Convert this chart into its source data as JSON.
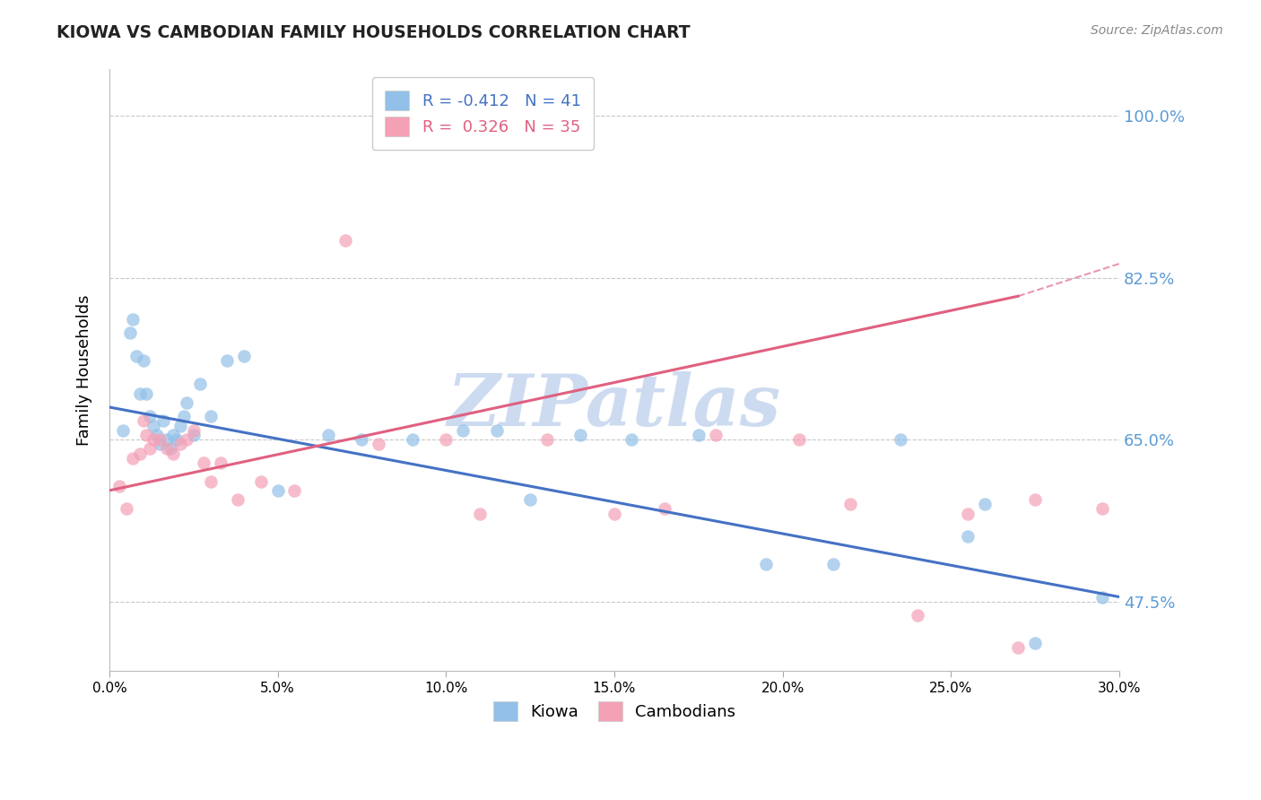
{
  "title": "KIOWA VS CAMBODIAN FAMILY HOUSEHOLDS CORRELATION CHART",
  "source": "Source: ZipAtlas.com",
  "ylabel": "Family Households",
  "xlim": [
    0.0,
    30.0
  ],
  "ylim": [
    40.0,
    105.0
  ],
  "yticks": [
    47.5,
    65.0,
    82.5,
    100.0
  ],
  "xticks": [
    0.0,
    5.0,
    10.0,
    15.0,
    20.0,
    25.0,
    30.0
  ],
  "kiowa_R": -0.412,
  "kiowa_N": 41,
  "cambodian_R": 0.326,
  "cambodian_N": 35,
  "kiowa_color": "#92C0E8",
  "cambodian_color": "#F4A0B5",
  "kiowa_line_color": "#4472C4",
  "cambodian_line_color": "#E06080",
  "background_color": "#ffffff",
  "grid_color": "#c8c8c8",
  "watermark": "ZIPatlas",
  "watermark_color": "#C8D8F0",
  "kiowa_line_x0": 0.0,
  "kiowa_line_y0": 68.5,
  "kiowa_line_x1": 30.0,
  "kiowa_line_y1": 48.0,
  "cambodian_line_x0": 0.0,
  "cambodian_line_y0": 59.5,
  "cambodian_line_x1": 27.0,
  "cambodian_line_y1": 80.5,
  "cambodian_dash_x0": 27.0,
  "cambodian_dash_y0": 80.5,
  "cambodian_dash_x1": 30.0,
  "cambodian_dash_y1": 84.0,
  "kiowa_x": [
    0.4,
    0.6,
    0.7,
    0.8,
    0.9,
    1.0,
    1.1,
    1.2,
    1.3,
    1.4,
    1.5,
    1.6,
    1.7,
    1.8,
    1.9,
    2.0,
    2.1,
    2.2,
    2.3,
    2.5,
    2.7,
    3.0,
    3.5,
    4.0,
    5.0,
    6.5,
    7.5,
    9.0,
    10.5,
    11.5,
    12.5,
    14.0,
    15.5,
    17.5,
    19.5,
    21.5,
    23.5,
    25.5,
    26.0,
    27.5,
    29.5
  ],
  "kiowa_y": [
    66.0,
    76.5,
    78.0,
    74.0,
    70.0,
    73.5,
    70.0,
    67.5,
    66.5,
    65.5,
    64.5,
    67.0,
    65.0,
    64.0,
    65.5,
    65.0,
    66.5,
    67.5,
    69.0,
    65.5,
    71.0,
    67.5,
    73.5,
    74.0,
    59.5,
    65.5,
    65.0,
    65.0,
    66.0,
    66.0,
    58.5,
    65.5,
    65.0,
    65.5,
    51.5,
    51.5,
    65.0,
    54.5,
    58.0,
    43.0,
    48.0
  ],
  "cambodian_x": [
    0.3,
    0.5,
    0.7,
    0.9,
    1.0,
    1.1,
    1.2,
    1.3,
    1.5,
    1.7,
    1.9,
    2.1,
    2.3,
    2.5,
    2.8,
    3.0,
    3.3,
    3.8,
    4.5,
    5.5,
    7.0,
    8.0,
    10.0,
    11.0,
    13.0,
    15.0,
    16.5,
    18.0,
    20.5,
    22.0,
    24.0,
    25.5,
    27.0,
    27.5,
    29.5
  ],
  "cambodian_y": [
    60.0,
    57.5,
    63.0,
    63.5,
    67.0,
    65.5,
    64.0,
    65.0,
    65.0,
    64.0,
    63.5,
    64.5,
    65.0,
    66.0,
    62.5,
    60.5,
    62.5,
    58.5,
    60.5,
    59.5,
    86.5,
    64.5,
    65.0,
    57.0,
    65.0,
    57.0,
    57.5,
    65.5,
    65.0,
    58.0,
    46.0,
    57.0,
    42.5,
    58.5,
    57.5
  ]
}
